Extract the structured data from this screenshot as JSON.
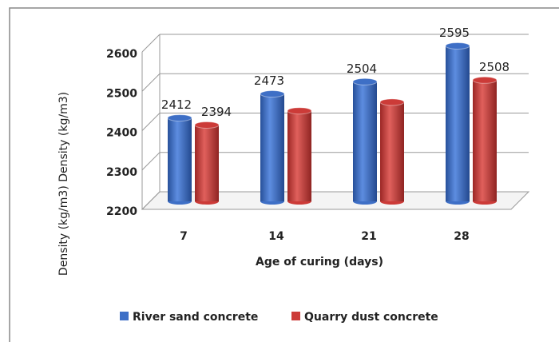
{
  "chart_data": {
    "type": "bar3d",
    "categories": [
      "7",
      "14",
      "21",
      "28"
    ],
    "series": [
      {
        "name": "River sand concrete",
        "color": "#3e6fc6",
        "values": [
          2412,
          2473,
          2504,
          2595
        ],
        "value_labels": [
          "2412",
          "2473",
          "2504",
          "2595"
        ]
      },
      {
        "name": "Quarry dust concrete",
        "color": "#cc3b38",
        "values": [
          2394,
          2430,
          2452,
          2508
        ],
        "value_labels": [
          "2394",
          null,
          null,
          "2508"
        ]
      }
    ],
    "ylim": [
      2200,
      2600
    ],
    "yticks": [
      2200,
      2300,
      2400,
      2500,
      2600
    ],
    "y_label": "Density (kg/m3) Density (kg/m3)",
    "x_label": "Age of curing (days)",
    "grid": true,
    "legend": "bottom"
  }
}
